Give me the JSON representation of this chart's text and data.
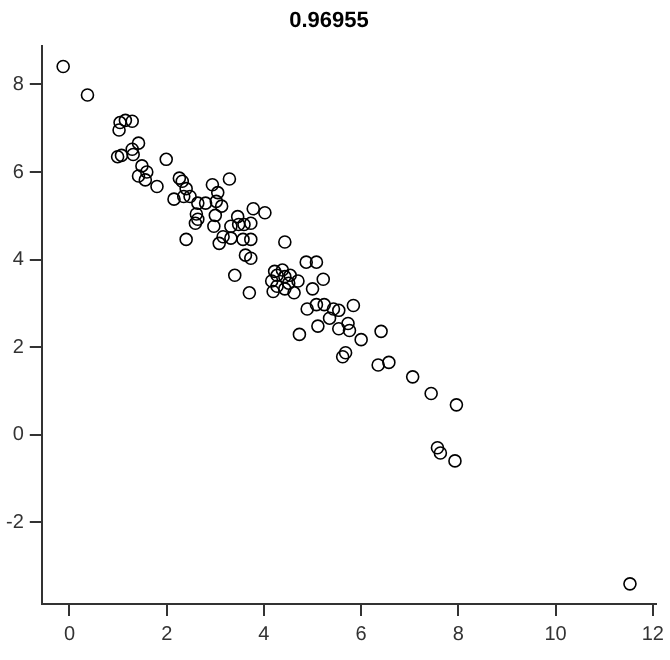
{
  "chart_data": {
    "type": "scatter",
    "title": "0.96955",
    "marker": "circle",
    "grid": false,
    "legend": false,
    "xlim": [
      -0.57,
      12.07
    ],
    "xticks": [
      0,
      2,
      4,
      6,
      8,
      10,
      12
    ],
    "ylim": [
      -3.87,
      8.87
    ],
    "yticks": [
      -2,
      0,
      2,
      4,
      6,
      8
    ],
    "series": [
      {
        "color": "#000000",
        "x": [
          -0.13,
          0.37,
          1.04,
          1.15,
          1.29,
          1.02,
          1.42,
          1.29,
          1.31,
          0.99,
          1.07,
          1.49,
          1.59,
          1.42,
          1.56,
          1.8,
          1.99,
          2.26,
          2.32,
          2.4,
          2.15,
          2.35,
          2.48,
          2.64,
          2.8,
          2.61,
          2.59,
          2.64,
          2.94,
          3.05,
          3.02,
          3.13,
          3.29,
          3.0,
          2.97,
          2.4,
          3.08,
          3.16,
          3.32,
          3.46,
          3.48,
          3.59,
          3.73,
          3.32,
          3.57,
          3.73,
          3.78,
          4.02,
          4.43,
          3.62,
          3.73,
          3.4,
          3.7,
          4.22,
          4.38,
          4.27,
          4.16,
          4.43,
          4.54,
          4.51,
          4.27,
          4.7,
          4.19,
          4.43,
          4.62,
          4.87,
          5.08,
          5.22,
          5.0,
          4.89,
          5.08,
          5.24,
          5.35,
          5.84,
          5.54,
          5.43,
          5.73,
          5.76,
          5.54,
          5.11,
          4.73,
          6.0,
          6.41,
          5.62,
          5.68,
          6.35,
          6.57,
          7.06,
          7.44,
          7.96,
          7.57,
          7.63,
          7.93,
          11.53
        ],
        "values": [
          8.41,
          7.76,
          7.13,
          7.18,
          7.16,
          6.96,
          6.66,
          6.52,
          6.4,
          6.35,
          6.38,
          6.14,
          6.0,
          5.91,
          5.82,
          5.67,
          6.29,
          5.86,
          5.79,
          5.62,
          5.38,
          5.44,
          5.44,
          5.29,
          5.29,
          5.04,
          4.83,
          4.92,
          5.71,
          5.53,
          5.33,
          5.22,
          5.84,
          5.01,
          4.76,
          4.46,
          4.37,
          4.52,
          4.76,
          4.98,
          4.8,
          4.8,
          4.83,
          4.49,
          4.46,
          4.46,
          5.16,
          5.07,
          4.4,
          4.1,
          4.03,
          3.64,
          3.24,
          3.73,
          3.76,
          3.64,
          3.51,
          3.61,
          3.64,
          3.46,
          3.39,
          3.51,
          3.27,
          3.33,
          3.24,
          3.94,
          3.94,
          3.55,
          3.33,
          2.87,
          2.97,
          2.97,
          2.66,
          2.95,
          2.84,
          2.87,
          2.54,
          2.38,
          2.42,
          2.48,
          2.29,
          2.17,
          2.36,
          1.78,
          1.87,
          1.59,
          1.65,
          1.32,
          0.94,
          0.68,
          -0.3,
          -0.42,
          -0.6,
          -3.41
        ]
      }
    ]
  }
}
